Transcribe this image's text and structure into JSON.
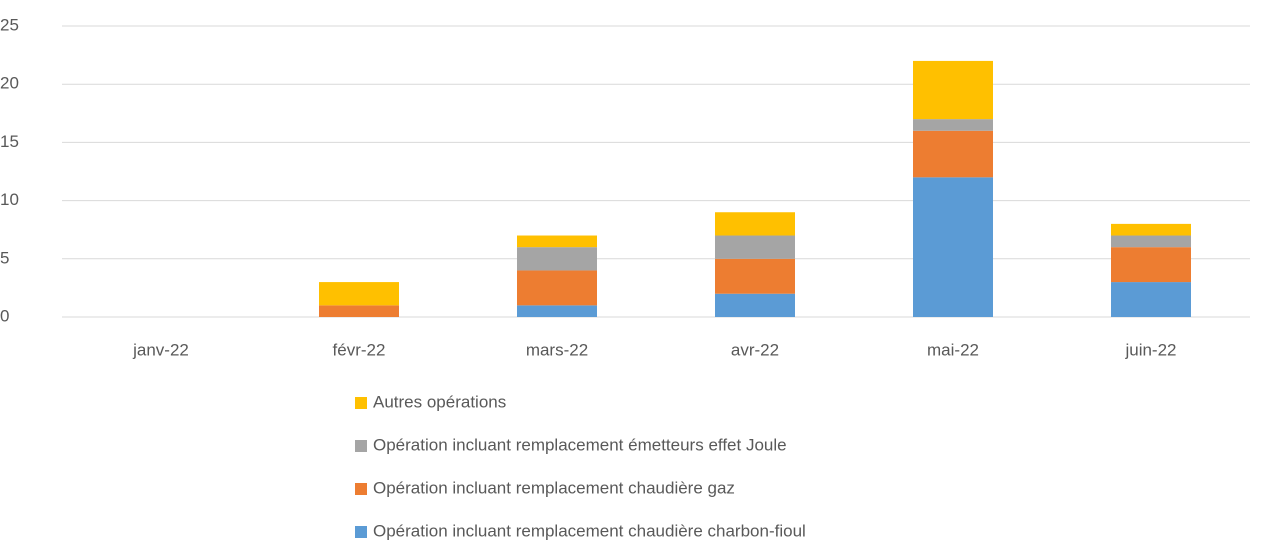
{
  "chart_data": {
    "type": "stacked_bar",
    "categories": [
      "janv-22",
      "févr-22",
      "mars-22",
      "avr-22",
      "mai-22",
      "juin-22"
    ],
    "series": [
      {
        "name": "Opération incluant remplacement chaudière charbon-fioul",
        "color": "#5b9bd5",
        "values": [
          0,
          0,
          1,
          2,
          12,
          3
        ]
      },
      {
        "name": "Opération incluant remplacement chaudière gaz",
        "color": "#ed7d31",
        "values": [
          0,
          1,
          3,
          3,
          4,
          3
        ]
      },
      {
        "name": "Opération incluant remplacement émetteurs effet Joule",
        "color": "#a5a5a5",
        "values": [
          0,
          0,
          2,
          2,
          1,
          1
        ]
      },
      {
        "name": "Autres opérations",
        "color": "#ffc000",
        "values": [
          0,
          2,
          1,
          2,
          5,
          1
        ]
      }
    ],
    "ylim": [
      0,
      25
    ],
    "yticks": [
      0,
      5,
      10,
      15,
      20,
      25
    ],
    "grid": true,
    "legend": "bottom"
  }
}
